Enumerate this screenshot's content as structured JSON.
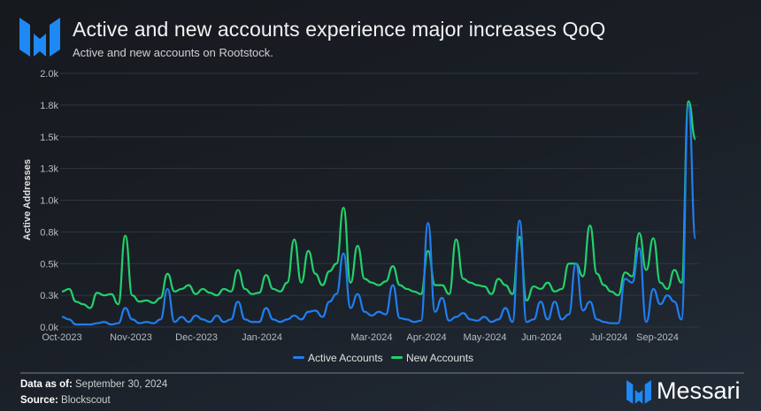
{
  "header": {
    "title": "Active and new accounts experience major increases QoQ",
    "subtitle": "Active and new accounts on Rootstock.",
    "logo": "Messari"
  },
  "footer": {
    "data_as_of_label": "Data as of:",
    "data_as_of_value": "September 30, 2024",
    "source_label": "Source:",
    "source_value": "Blockscout",
    "brand": "Messari"
  },
  "colors": {
    "active": "#1f7ef0",
    "new": "#22d16b",
    "grid": "#2f3640",
    "axis_text": "#b8bcc4"
  },
  "chart_data": {
    "type": "line",
    "ylabel": "Active Addresses",
    "ylim": [
      0,
      2000
    ],
    "yticks": [
      0,
      250,
      500,
      750,
      1000,
      1250,
      1500,
      1750,
      2000
    ],
    "ytick_labels": [
      "0.0k",
      "0.3k",
      "0.5k",
      "0.8k",
      "1.0k",
      "1.3k",
      "1.5k",
      "1.8k",
      "2.0k"
    ],
    "xtick_labels": [
      "Oct-2023",
      "Nov-2023",
      "Dec-2023",
      "Jan-2024",
      "Mar-2024",
      "Apr-2024",
      "May-2024",
      "Jun-2024",
      "Jul-2024",
      "Sep-2024"
    ],
    "grid": true,
    "legend_position": "bottom",
    "x": [
      "2023-10-01",
      "2023-10-05",
      "2023-10-09",
      "2023-10-13",
      "2023-10-17",
      "2023-10-21",
      "2023-10-25",
      "2023-10-29",
      "2023-11-02",
      "2023-11-06",
      "2023-11-10",
      "2023-11-14",
      "2023-11-18",
      "2023-11-22",
      "2023-11-26",
      "2023-11-30",
      "2023-12-04",
      "2023-12-08",
      "2023-12-12",
      "2023-12-16",
      "2023-12-20",
      "2023-12-24",
      "2023-12-28",
      "2024-01-01",
      "2024-01-05",
      "2024-01-09",
      "2024-01-13",
      "2024-01-17",
      "2024-01-21",
      "2024-01-25",
      "2024-01-29",
      "2024-02-02",
      "2024-02-06",
      "2024-02-10",
      "2024-02-14",
      "2024-02-18",
      "2024-02-22",
      "2024-02-26",
      "2024-03-01",
      "2024-03-05",
      "2024-03-09",
      "2024-03-13",
      "2024-03-17",
      "2024-03-21",
      "2024-03-25",
      "2024-03-29",
      "2024-04-02",
      "2024-04-06",
      "2024-04-10",
      "2024-04-14",
      "2024-04-18",
      "2024-04-22",
      "2024-04-26",
      "2024-04-30",
      "2024-05-04",
      "2024-05-08",
      "2024-05-12",
      "2024-05-16",
      "2024-05-20",
      "2024-05-24",
      "2024-05-28",
      "2024-06-01",
      "2024-06-05",
      "2024-06-09",
      "2024-06-13",
      "2024-06-17",
      "2024-06-21",
      "2024-06-25",
      "2024-06-29",
      "2024-07-03",
      "2024-07-07",
      "2024-07-11",
      "2024-07-15",
      "2024-07-19",
      "2024-07-23",
      "2024-07-27",
      "2024-07-31",
      "2024-08-04",
      "2024-08-08",
      "2024-08-12",
      "2024-08-16",
      "2024-08-20",
      "2024-08-24",
      "2024-08-28",
      "2024-09-01",
      "2024-09-05",
      "2024-09-09",
      "2024-09-13",
      "2024-09-17",
      "2024-09-21",
      "2024-09-25"
    ],
    "series": [
      {
        "name": "Active Accounts",
        "values": [
          80,
          60,
          20,
          20,
          20,
          30,
          40,
          20,
          30,
          150,
          60,
          30,
          40,
          30,
          60,
          300,
          40,
          80,
          40,
          90,
          60,
          40,
          90,
          40,
          60,
          200,
          60,
          40,
          40,
          150,
          60,
          40,
          60,
          90,
          60,
          120,
          130,
          80,
          200,
          260,
          580,
          150,
          260,
          120,
          90,
          120,
          100,
          330,
          70,
          60,
          40,
          50,
          820,
          120,
          230,
          50,
          80,
          110,
          60,
          50,
          80,
          40,
          60,
          150,
          40,
          840,
          40,
          60,
          200,
          60,
          200,
          60,
          100,
          500,
          130,
          200,
          60,
          40,
          30,
          30,
          380,
          350,
          620,
          40,
          300,
          180,
          250,
          200,
          60,
          1750,
          700
        ]
      },
      {
        "name": "New Accounts",
        "values": [
          280,
          300,
          200,
          180,
          150,
          270,
          250,
          260,
          180,
          720,
          250,
          200,
          210,
          190,
          230,
          420,
          280,
          300,
          330,
          260,
          300,
          270,
          250,
          300,
          280,
          450,
          300,
          260,
          270,
          410,
          300,
          280,
          350,
          690,
          350,
          600,
          420,
          330,
          440,
          500,
          940,
          350,
          640,
          380,
          350,
          330,
          360,
          480,
          330,
          300,
          280,
          260,
          600,
          330,
          330,
          260,
          690,
          380,
          350,
          330,
          320,
          260,
          380,
          330,
          260,
          710,
          210,
          320,
          300,
          350,
          280,
          300,
          500,
          500,
          400,
          800,
          420,
          330,
          280,
          250,
          430,
          400,
          740,
          450,
          700,
          350,
          300,
          450,
          350,
          1780,
          1480
        ]
      }
    ]
  },
  "legend": {
    "items": [
      "Active Accounts",
      "New Accounts"
    ]
  }
}
